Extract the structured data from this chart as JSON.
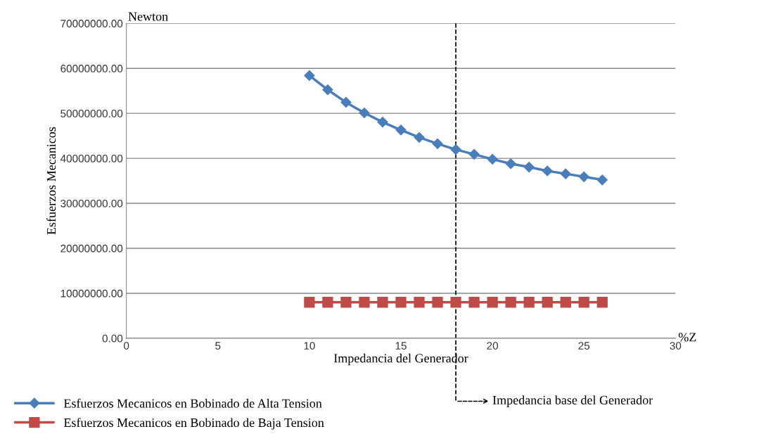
{
  "chart_data": {
    "type": "line",
    "xlabel": "Impedancia del Generador",
    "ylabel": "Esfuerzos Mecanicos",
    "x": [
      10,
      11,
      12,
      13,
      14,
      15,
      16,
      17,
      18,
      19,
      20,
      21,
      22,
      23,
      24,
      25,
      26
    ],
    "series": [
      {
        "name": "Esfuerzos Mecanicos en Bobinado de Alta Tension",
        "color": "#4a7ebb",
        "marker": "diamond",
        "values": [
          58400000,
          55250000,
          52450000,
          50100000,
          48050000,
          46300000,
          44650000,
          43250000,
          41950000,
          40900000,
          39800000,
          38800000,
          38050000,
          37200000,
          36550000,
          35900000,
          35200000
        ]
      },
      {
        "name": "Esfuerzos Mecanicos en Bobinado de Baja Tension",
        "color": "#be4b48",
        "marker": "square",
        "values": [
          8000000,
          8000000,
          8000000,
          8000000,
          8000000,
          8000000,
          8000000,
          8000000,
          8000000,
          8000000,
          8000000,
          8000000,
          8000000,
          8000000,
          8000000,
          8000000,
          8000000
        ]
      }
    ],
    "xlim": [
      0,
      30
    ],
    "xticks": [
      0,
      5,
      10,
      15,
      20,
      25,
      30
    ],
    "ylim": [
      0,
      70000000
    ],
    "yticks": [
      {
        "value": 0,
        "label": "0.00"
      },
      {
        "value": 10000000,
        "label": "10000000.00"
      },
      {
        "value": 20000000,
        "label": "20000000.00"
      },
      {
        "value": 30000000,
        "label": "30000000.00"
      },
      {
        "value": 40000000,
        "label": "40000000.00"
      },
      {
        "value": 50000000,
        "label": "50000000.00"
      },
      {
        "value": 60000000,
        "label": "60000000.00"
      },
      {
        "value": 70000000,
        "label": "70000000.00"
      }
    ],
    "grid": "y",
    "legend": "bottom",
    "ref_lines": [
      {
        "axis": "x",
        "value": 18,
        "label": "Impedancia base del Generador",
        "color": "#000000",
        "line_style": "dashed"
      }
    ],
    "annotations": [
      "Newton",
      "%Z"
    ]
  }
}
